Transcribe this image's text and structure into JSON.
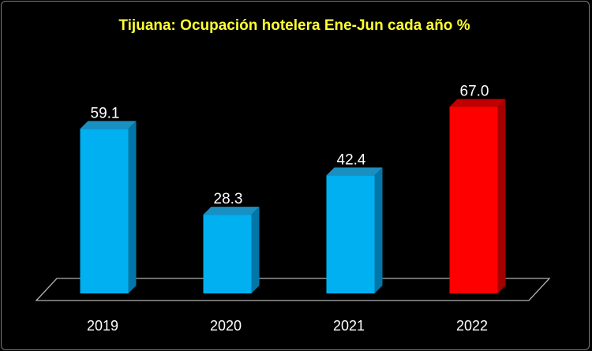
{
  "chart_data": {
    "type": "bar",
    "title": "Tijuana: Ocupación hotelera Ene-Jun cada año %",
    "categories": [
      "2019",
      "2020",
      "2021",
      "2022"
    ],
    "values": [
      59.1,
      28.3,
      42.4,
      67.0
    ],
    "data_labels": [
      "59.1",
      "28.3",
      "42.4",
      "67.0"
    ],
    "ylim": [
      0,
      70
    ],
    "grid": false,
    "legend": "none",
    "colors": {
      "default_front": "#00b0f0",
      "default_side": "#0077a8",
      "default_top": "#1a8fc2",
      "highlight_front": "#ff0000",
      "highlight_side": "#a50000",
      "highlight_top": "#c00000",
      "floor": "#000000",
      "floor_edge": "#b0b0b0",
      "title": "#ffff33",
      "text": "#ffffff"
    },
    "highlight_index": 3
  }
}
